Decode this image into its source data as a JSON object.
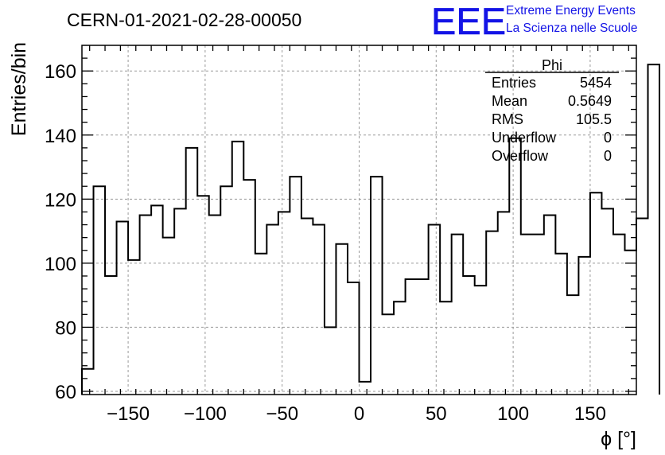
{
  "chart_data": {
    "type": "histogram",
    "title": "CERN-01-2021-02-28-00050",
    "xlabel": "ϕ [°]",
    "ylabel": "Entries/bin",
    "xlim": [
      -180,
      180
    ],
    "ylim": [
      59,
      168
    ],
    "grid": true,
    "xticks": [
      -150,
      -100,
      -50,
      0,
      50,
      100,
      150
    ],
    "xtick_labels": [
      "−150",
      "−100",
      "−50",
      "0",
      "50",
      "100",
      "150"
    ],
    "yticks": [
      60,
      80,
      100,
      120,
      140,
      160
    ],
    "bin_width": 7.5,
    "bin_edges_start": -180,
    "values": [
      67,
      124,
      96,
      113,
      101,
      115,
      118,
      108,
      117,
      136,
      121,
      115,
      124,
      138,
      126,
      103,
      112,
      116,
      127,
      114,
      112,
      80,
      106,
      94,
      63,
      127,
      84,
      88,
      95,
      95,
      112,
      88,
      109,
      96,
      93,
      110,
      116,
      139,
      109,
      109,
      115,
      103,
      90,
      102,
      122,
      117,
      109,
      104,
      114,
      162
    ],
    "stats": {
      "name": "Phi",
      "rows": [
        {
          "label": "Entries",
          "value": "5454"
        },
        {
          "label": "Mean",
          "value": "0.5649"
        },
        {
          "label": "RMS",
          "value": "105.5"
        },
        {
          "label": "Underflow",
          "value": "0"
        },
        {
          "label": "Overflow",
          "value": "0"
        }
      ]
    }
  },
  "logo": {
    "mark": "EEE",
    "line1": "Extreme Energy Events",
    "line2": "La Scienza nelle Scuole",
    "color": "#1414e6"
  }
}
